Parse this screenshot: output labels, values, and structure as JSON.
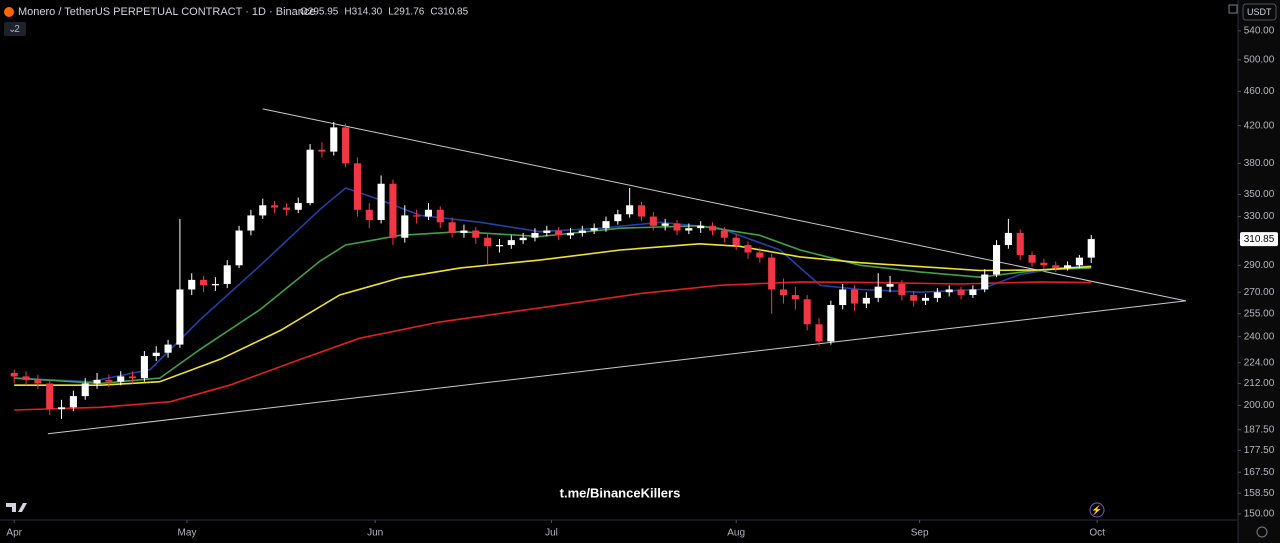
{
  "chart_data": {
    "type": "candlestick",
    "header": {
      "symbol": "Monero / TetherUS PERPETUAL CONTRACT · 1D · Binance",
      "ohlc": [
        "O295.95",
        "H314.30",
        "L291.76",
        "C310.85"
      ]
    },
    "currency": "USDT",
    "indicator_count": "2",
    "watermark": "t.me/BinanceKillers",
    "up_color": "#ffffff",
    "down_color": "#f23645",
    "log_scale": true,
    "ylim": [
      147.6,
      586
    ],
    "xlim": [
      -1.2,
      103.4
    ],
    "yticks": [
      {
        "value": 540,
        "label": "540.00"
      },
      {
        "value": 500,
        "label": "500.00"
      },
      {
        "value": 460,
        "label": "460.00"
      },
      {
        "value": 420,
        "label": "420.00"
      },
      {
        "value": 380,
        "label": "380.00"
      },
      {
        "value": 350,
        "label": "350.00"
      },
      {
        "value": 330,
        "label": "330.00"
      },
      {
        "value": 310,
        "label": "310.00"
      },
      {
        "value": 290,
        "label": "290.00"
      },
      {
        "value": 270,
        "label": "270.00"
      },
      {
        "value": 255,
        "label": "255.00"
      },
      {
        "value": 240,
        "label": "240.00"
      },
      {
        "value": 224,
        "label": "224.00"
      },
      {
        "value": 212,
        "label": "212.00"
      },
      {
        "value": 200,
        "label": "200.00"
      },
      {
        "value": 187.5,
        "label": "187.50"
      },
      {
        "value": 177.5,
        "label": "177.50"
      },
      {
        "value": 167.5,
        "label": "167.50"
      },
      {
        "value": 158.5,
        "label": "158.50"
      },
      {
        "value": 150,
        "label": "150.00"
      }
    ],
    "xticks": [
      {
        "value": 0,
        "label": "Apr"
      },
      {
        "value": 14.6,
        "label": "May"
      },
      {
        "value": 30.5,
        "label": "Jun"
      },
      {
        "value": 45.4,
        "label": "Jul"
      },
      {
        "value": 61,
        "label": "Aug"
      },
      {
        "value": 76.5,
        "label": "Sep"
      },
      {
        "value": 91.5,
        "label": "Oct"
      }
    ],
    "candles": [
      [
        218,
        220,
        212,
        216
      ],
      [
        216,
        219,
        211,
        214
      ],
      [
        214,
        217,
        209,
        212
      ],
      [
        212,
        214,
        195,
        198
      ],
      [
        198,
        203,
        193,
        199
      ],
      [
        199,
        208,
        197,
        205
      ],
      [
        205,
        215,
        203,
        212
      ],
      [
        212,
        218,
        209,
        214
      ],
      [
        214,
        217,
        210,
        213
      ],
      [
        213,
        219,
        211,
        216
      ],
      [
        216,
        219,
        212,
        215
      ],
      [
        215,
        231,
        213,
        228
      ],
      [
        228,
        234,
        225,
        230
      ],
      [
        230,
        238,
        227,
        235
      ],
      [
        235,
        328,
        233,
        272
      ],
      [
        272,
        284,
        268,
        279
      ],
      [
        279,
        282,
        270,
        275
      ],
      [
        275,
        281,
        271,
        276
      ],
      [
        276,
        294,
        273,
        290
      ],
      [
        290,
        322,
        288,
        318
      ],
      [
        318,
        336,
        314,
        331
      ],
      [
        331,
        346,
        328,
        340
      ],
      [
        340,
        344,
        333,
        338
      ],
      [
        338,
        342,
        331,
        336
      ],
      [
        336,
        347,
        333,
        342
      ],
      [
        342,
        400,
        340,
        394
      ],
      [
        394,
        402,
        386,
        392
      ],
      [
        392,
        424,
        388,
        418
      ],
      [
        418,
        422,
        376,
        380
      ],
      [
        380,
        386,
        330,
        336
      ],
      [
        336,
        342,
        320,
        327
      ],
      [
        327,
        368,
        324,
        360
      ],
      [
        360,
        364,
        306,
        312
      ],
      [
        312,
        340,
        308,
        331
      ],
      [
        331,
        336,
        324,
        330
      ],
      [
        330,
        342,
        327,
        336
      ],
      [
        336,
        339,
        320,
        325
      ],
      [
        325,
        329,
        312,
        316
      ],
      [
        316,
        323,
        312,
        318
      ],
      [
        318,
        321,
        307,
        312
      ],
      [
        312,
        315,
        290,
        305
      ],
      [
        305,
        311,
        300,
        306
      ],
      [
        306,
        314,
        303,
        310
      ],
      [
        310,
        316,
        307,
        312
      ],
      [
        312,
        320,
        309,
        316
      ],
      [
        316,
        322,
        313,
        318
      ],
      [
        318,
        321,
        310,
        314
      ],
      [
        314,
        320,
        311,
        316
      ],
      [
        316,
        322,
        313,
        318
      ],
      [
        318,
        324,
        315,
        320
      ],
      [
        320,
        330,
        317,
        326
      ],
      [
        326,
        336,
        323,
        332
      ],
      [
        332,
        356,
        329,
        340
      ],
      [
        340,
        343,
        326,
        330
      ],
      [
        330,
        334,
        318,
        322
      ],
      [
        322,
        328,
        318,
        324
      ],
      [
        324,
        327,
        314,
        318
      ],
      [
        318,
        324,
        315,
        320
      ],
      [
        320,
        326,
        316,
        322
      ],
      [
        322,
        325,
        314,
        318
      ],
      [
        318,
        321,
        308,
        312
      ],
      [
        312,
        315,
        302,
        306
      ],
      [
        306,
        309,
        295,
        300
      ],
      [
        300,
        304,
        292,
        296
      ],
      [
        296,
        299,
        255,
        272
      ],
      [
        272,
        280,
        262,
        268
      ],
      [
        268,
        274,
        258,
        265
      ],
      [
        265,
        268,
        244,
        248
      ],
      [
        248,
        252,
        234,
        237
      ],
      [
        237,
        264,
        235,
        261
      ],
      [
        261,
        276,
        258,
        272
      ],
      [
        272,
        275,
        257,
        262
      ],
      [
        262,
        270,
        259,
        266
      ],
      [
        266,
        284,
        263,
        274
      ],
      [
        274,
        282,
        270,
        276
      ],
      [
        276,
        279,
        264,
        268
      ],
      [
        268,
        271,
        260,
        264
      ],
      [
        264,
        269,
        261,
        266
      ],
      [
        266,
        273,
        263,
        270
      ],
      [
        270,
        275,
        267,
        272
      ],
      [
        272,
        274,
        265,
        268
      ],
      [
        268,
        275,
        266,
        272
      ],
      [
        272,
        287,
        270,
        283
      ],
      [
        283,
        310,
        281,
        306
      ],
      [
        306,
        328,
        303,
        316
      ],
      [
        316,
        319,
        294,
        298
      ],
      [
        298,
        301,
        289,
        292
      ],
      [
        292,
        295,
        287,
        290
      ],
      [
        290,
        293,
        285,
        288
      ],
      [
        288,
        293,
        286,
        290
      ],
      [
        290,
        298,
        288,
        295.95
      ],
      [
        295.95,
        314.3,
        291.76,
        310.85
      ]
    ],
    "lines": [
      {
        "color": "#2340a8",
        "x": [
          0,
          6.4,
          11.5,
          15.7,
          20.8,
          25.8,
          28,
          30.9,
          34.3,
          39.4,
          44.4,
          49.5,
          54.6,
          59.6,
          64.7,
          68.1,
          71.5,
          76.5,
          81.6,
          85,
          88.3,
          91
        ],
        "values": [
          215,
          213,
          220,
          251,
          290,
          336,
          356,
          345,
          331,
          325,
          317,
          320,
          325,
          320,
          302,
          275,
          272,
          270,
          272,
          283,
          288,
          289.5
        ]
      },
      {
        "color": "#43a047",
        "x": [
          0,
          7.3,
          12.3,
          15.7,
          20.8,
          25.8,
          28,
          32.6,
          37.7,
          44.4,
          51.2,
          57.9,
          63,
          66.4,
          71.5,
          76.5,
          81.6,
          86.7,
          91
        ],
        "values": [
          215,
          212,
          215,
          232,
          258,
          293,
          306,
          314,
          317,
          313,
          320,
          322,
          314,
          302,
          290,
          285,
          281,
          286.5,
          288
        ]
      },
      {
        "color": "#f0e130",
        "x": [
          0,
          7.3,
          12.3,
          17.4,
          22.5,
          27.5,
          32.6,
          37.7,
          44.4,
          51.2,
          57.9,
          61.3,
          66.4,
          71.5,
          76.5,
          81.6,
          86.7,
          91
        ],
        "values": [
          211,
          211,
          213,
          226,
          244,
          268,
          280.5,
          288,
          294,
          302,
          307,
          305,
          296.5,
          292,
          289,
          286,
          286.5,
          289
        ]
      },
      {
        "color": "#e0201b",
        "x": [
          0,
          7.3,
          13.2,
          18.2,
          24.2,
          29.2,
          36,
          44.4,
          52.9,
          59.6,
          66.4,
          73.1,
          79.9,
          86.7,
          91
        ],
        "values": [
          197.6,
          199,
          202,
          211,
          226,
          239,
          249.6,
          259,
          269,
          275,
          277.5,
          277,
          276,
          277.5,
          277
        ]
      }
    ],
    "trendlines": [
      {
        "color": "#c8cad0",
        "x": [
          21,
          99
        ],
        "values": [
          439,
          263.9
        ]
      },
      {
        "color": "#c8cad0",
        "x": [
          2.85,
          99
        ],
        "values": [
          185.5,
          263.9
        ]
      }
    ]
  }
}
